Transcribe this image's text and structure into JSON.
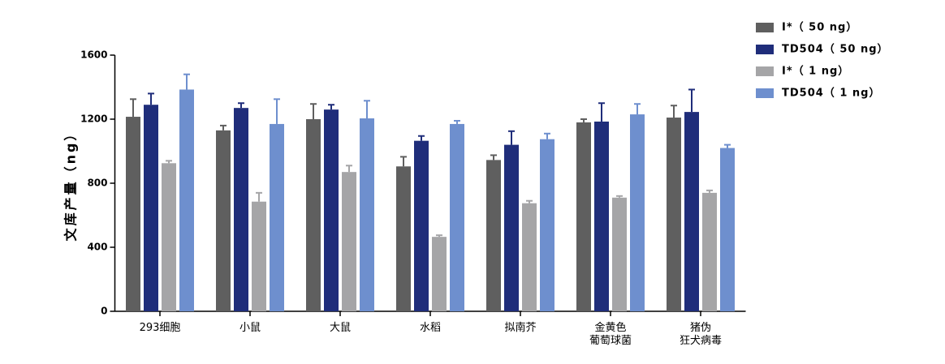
{
  "chart_data": {
    "type": "bar",
    "y_label": "文库产量（ng）",
    "categories": [
      "293细胞",
      "小鼠",
      "大鼠",
      "水稻",
      "拟南芥",
      "金黄色\n葡萄球菌",
      "猪伪\n狂犬病毒"
    ],
    "series": [
      {
        "name": "I*（ 50 ng）",
        "color": "#5f5f5f",
        "values": [
          1215,
          1130,
          1200,
          905,
          945,
          1180,
          1210
        ],
        "errors": [
          110,
          30,
          95,
          60,
          30,
          20,
          75
        ]
      },
      {
        "name": "TD504（ 50 ng）",
        "color": "#1f2d7a",
        "values": [
          1290,
          1270,
          1260,
          1065,
          1040,
          1185,
          1245
        ],
        "errors": [
          70,
          30,
          30,
          30,
          85,
          115,
          140
        ]
      },
      {
        "name": "I*（ 1 ng）",
        "color": "#a5a5a7",
        "values": [
          925,
          685,
          870,
          465,
          675,
          710,
          740
        ],
        "errors": [
          15,
          55,
          40,
          10,
          15,
          10,
          15
        ]
      },
      {
        "name": "TD504（ 1 ng）",
        "color": "#6e8fce",
        "values": [
          1385,
          1170,
          1205,
          1170,
          1075,
          1230,
          1020
        ],
        "errors": [
          95,
          155,
          110,
          20,
          35,
          65,
          20
        ]
      }
    ],
    "ylim": [
      0,
      1600
    ],
    "yticks": [
      0,
      400,
      800,
      1200,
      1600
    ]
  }
}
